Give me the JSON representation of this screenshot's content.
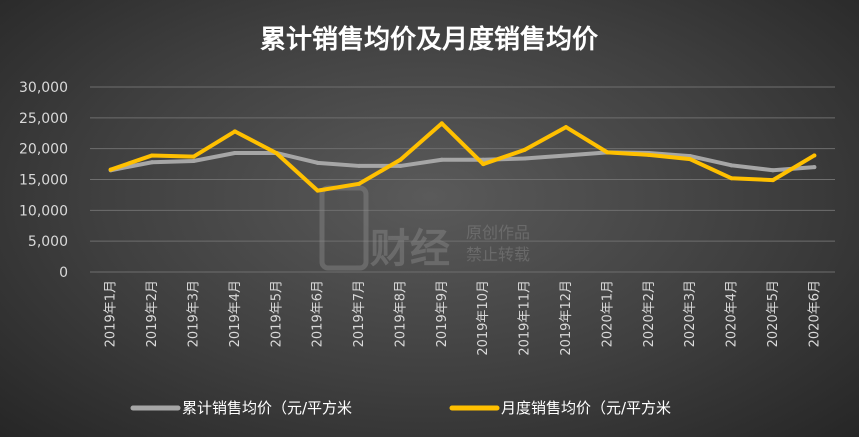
{
  "chart_data": {
    "type": "line",
    "title": "累计销售均价及月度销售均价",
    "xlabel": "",
    "ylabel": "",
    "categories": [
      "2019年1月",
      "2019年2月",
      "2019年3月",
      "2019年4月",
      "2019年5月",
      "2019年6月",
      "2019年7月",
      "2019年8月",
      "2019年9月",
      "2019年10月",
      "2019年11月",
      "2019年12月",
      "2020年1月",
      "2020年2月",
      "2020年3月",
      "2020年4月",
      "2020年5月",
      "2020年6月"
    ],
    "y_ticks": [
      "0",
      "5,000",
      "10,000",
      "15,000",
      "20,000",
      "25,000",
      "30,000"
    ],
    "ylim": [
      0,
      30000
    ],
    "grid": true,
    "legend_position": "bottom",
    "series": [
      {
        "name": "累计销售均价（元/平方米",
        "color": "#a6a6a6",
        "values": [
          16500,
          17800,
          18000,
          19300,
          19300,
          17700,
          17200,
          17200,
          18200,
          18200,
          18400,
          18900,
          19400,
          19300,
          18800,
          17300,
          16500,
          17000
        ]
      },
      {
        "name": "月度销售均价（元/平方米",
        "color": "#ffc000",
        "values": [
          16600,
          18900,
          18700,
          22800,
          19300,
          13200,
          14300,
          18200,
          24100,
          17500,
          19800,
          23500,
          19400,
          19000,
          18300,
          15200,
          14900,
          18900
        ]
      }
    ]
  },
  "watermark": {
    "line1": "原创作品",
    "line2": "禁止转载",
    "brand": "财经"
  }
}
